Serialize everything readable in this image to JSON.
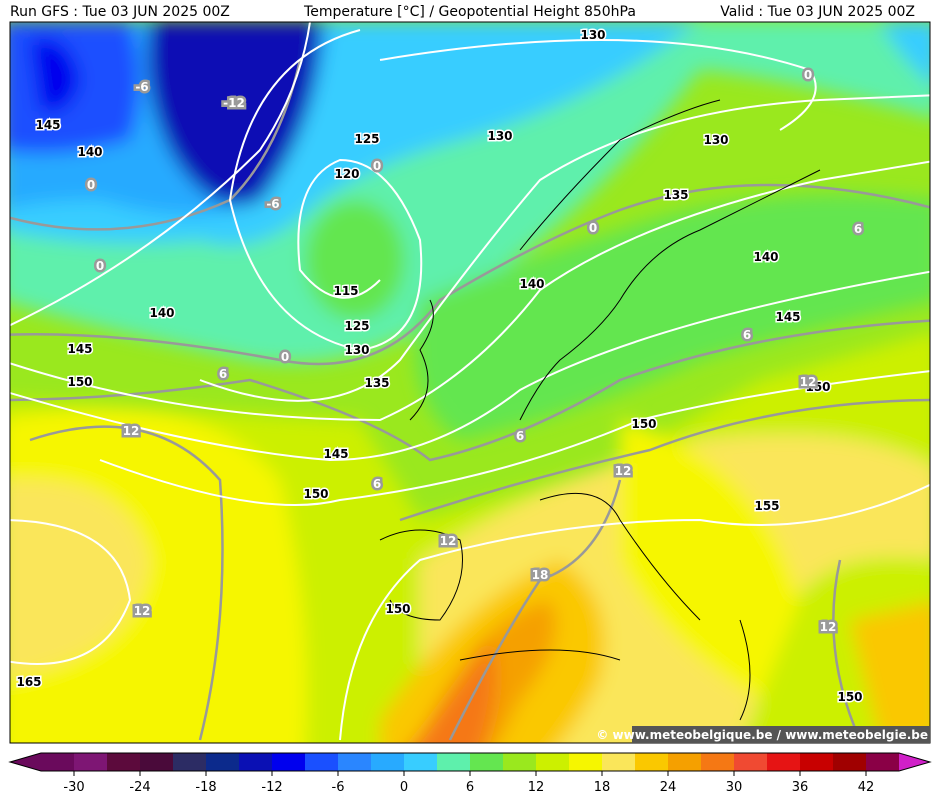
{
  "header": {
    "left": "Run GFS : Tue 03 JUN 2025 00Z",
    "center": "Temperature [°C] / Geopotential Height 850hPa",
    "right": "Valid : Tue 03 JUN 2025 00Z"
  },
  "credit": "© www.meteobelgique.be / www.meteobelgie.be",
  "height_labels": [
    130,
    145,
    140,
    125,
    130,
    130,
    120,
    135,
    140,
    115,
    140,
    140,
    125,
    145,
    145,
    130,
    150,
    135,
    150,
    150,
    145,
    150,
    155,
    150,
    165,
    150
  ],
  "temperature_labels": [
    -6,
    -12,
    0,
    0,
    -6,
    0,
    0,
    0,
    6,
    0,
    6,
    6,
    12,
    12,
    6,
    12,
    6,
    12,
    18,
    12,
    12
  ],
  "colorbar": {
    "ticks": [
      -30,
      -24,
      -18,
      -12,
      -6,
      0,
      6,
      12,
      18,
      24,
      30,
      36,
      42
    ],
    "colors": [
      "#6a0a5c",
      "#7e1674",
      "#5c0a3c",
      "#4a0a3a",
      "#2c2c64",
      "#0c2a8c",
      "#0a10b4",
      "#0000ee",
      "#1a50ff",
      "#2a86ff",
      "#28aaff",
      "#38cdff",
      "#5ef0ac",
      "#64e650",
      "#9ae81e",
      "#ccf000",
      "#f6f600",
      "#fae65a",
      "#fac800",
      "#f5a000",
      "#f57814",
      "#f04a32",
      "#e61414",
      "#c80000",
      "#a00000",
      "#8a0046"
    ]
  }
}
